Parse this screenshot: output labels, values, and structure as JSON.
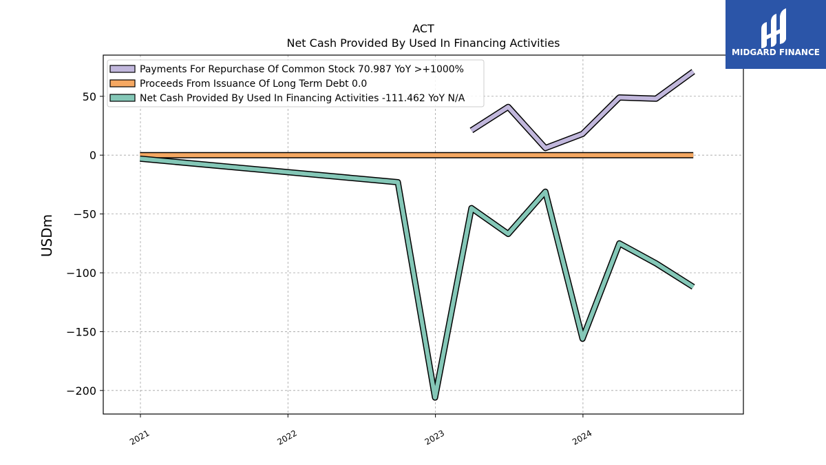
{
  "logo": {
    "text": "MIDGARD FINANCE",
    "bg_color": "#2b55a8"
  },
  "chart_data": {
    "type": "line",
    "title": "ACT",
    "subtitle": "Net Cash Provided By Used In Financing Activities",
    "xlabel": "",
    "ylabel": "USDm",
    "xlim": [
      "2020-10-01",
      "2025-02-01"
    ],
    "ylim": [
      -220,
      85
    ],
    "x_ticks": [
      "2021",
      "2022",
      "2023",
      "2024"
    ],
    "y_ticks": [
      50,
      0,
      -50,
      -100,
      -150,
      -200
    ],
    "y_tick_labels": [
      "50",
      "0",
      "−50",
      "−100",
      "−150",
      "−200"
    ],
    "grid": true,
    "legend_position": "top-left",
    "series": [
      {
        "name": "Payments For Repurchase Of Common Stock",
        "legend_label": "Payments For Repurchase Of Common Stock  70.987 YoY >+1000%",
        "color": "#c1b7dc",
        "x": [
          "2023-03-31",
          "2023-06-30",
          "2023-09-30",
          "2023-12-31",
          "2024-03-31",
          "2024-06-30",
          "2024-09-30"
        ],
        "values": [
          21,
          41,
          6,
          18,
          49,
          48,
          71
        ]
      },
      {
        "name": "Proceeds From Issuance Of Long Term Debt",
        "legend_label": "Proceeds From Issuance Of Long Term Debt  0.0",
        "color": "#f5a862",
        "x": [
          "2020-12-31",
          "2024-09-30"
        ],
        "values": [
          0,
          0
        ]
      },
      {
        "name": "Net Cash Provided By Used In Financing Activities",
        "legend_label": "Net Cash Provided By Used In Financing Activities  -111.462 YoY N/A",
        "color": "#84c7b7",
        "x": [
          "2020-12-31",
          "2022-09-30",
          "2022-12-31",
          "2023-03-31",
          "2023-06-30",
          "2023-09-30",
          "2023-12-31",
          "2024-03-31",
          "2024-06-30",
          "2024-09-30"
        ],
        "values": [
          -3,
          -23,
          -206,
          -45,
          -67,
          -31,
          -156,
          -75,
          -92,
          -112
        ]
      }
    ]
  }
}
